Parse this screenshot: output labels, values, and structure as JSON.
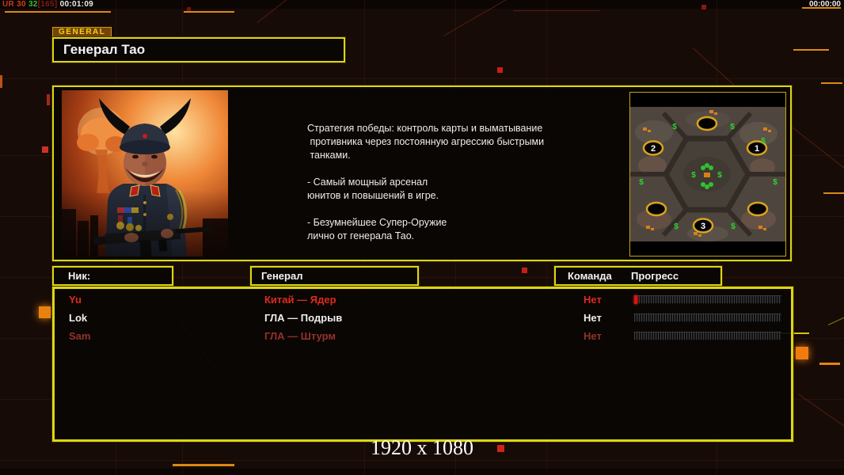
{
  "hud": {
    "debug_segments": [
      {
        "text": "UR ",
        "color": "#c03a20"
      },
      {
        "text": "30 ",
        "color": "#d04018"
      },
      {
        "text": "32",
        "color": "#3fb832"
      },
      {
        "text": "[165] ",
        "color": "#7c1d14"
      },
      {
        "text": "00:01:09",
        "color": "#eaeaea"
      }
    ],
    "match_timer": "00:00:00"
  },
  "header": {
    "tab_label": "GENERAL",
    "title": "Генерал Тао"
  },
  "info_panel": {
    "description_lines": [
      "Стратегия победы: контроль карты и выматывание",
      " противника через постоянную агрессию быстрыми",
      " танками.",
      "",
      "- Самый мощный арсенал",
      "юнитов и повышений в игре.",
      "",
      "- Безумнейшее Супер-Оружие",
      "лично от генерала Тао."
    ]
  },
  "minimap": {
    "money_icon": "$",
    "spawns": [
      {
        "label": "1"
      },
      {
        "label": "2"
      },
      {
        "label": "3"
      }
    ]
  },
  "roster": {
    "headers": {
      "nick": "Ник:",
      "general": "Генерал",
      "team": "Команда",
      "progress": "Прогресс"
    },
    "players": [
      {
        "nick": "Yu",
        "general": "Китай — Ядер",
        "team": "Нет",
        "progress_percent": 2,
        "color": "#de2c1c"
      },
      {
        "nick": "Lok",
        "general": "ГЛА — Подрыв",
        "team": "Нет",
        "progress_percent": 0,
        "color": "#f0efec"
      },
      {
        "nick": "Sam",
        "general": "ГЛА — Штурм",
        "team": "Нет",
        "progress_percent": 0,
        "color": "#93322a"
      }
    ]
  },
  "footer": {
    "resolution_label": "1920 x 1080"
  },
  "colors": {
    "accent_yellow": "#ded613",
    "bright_orange": "#e8820f",
    "red_marker": "#cf2318"
  }
}
